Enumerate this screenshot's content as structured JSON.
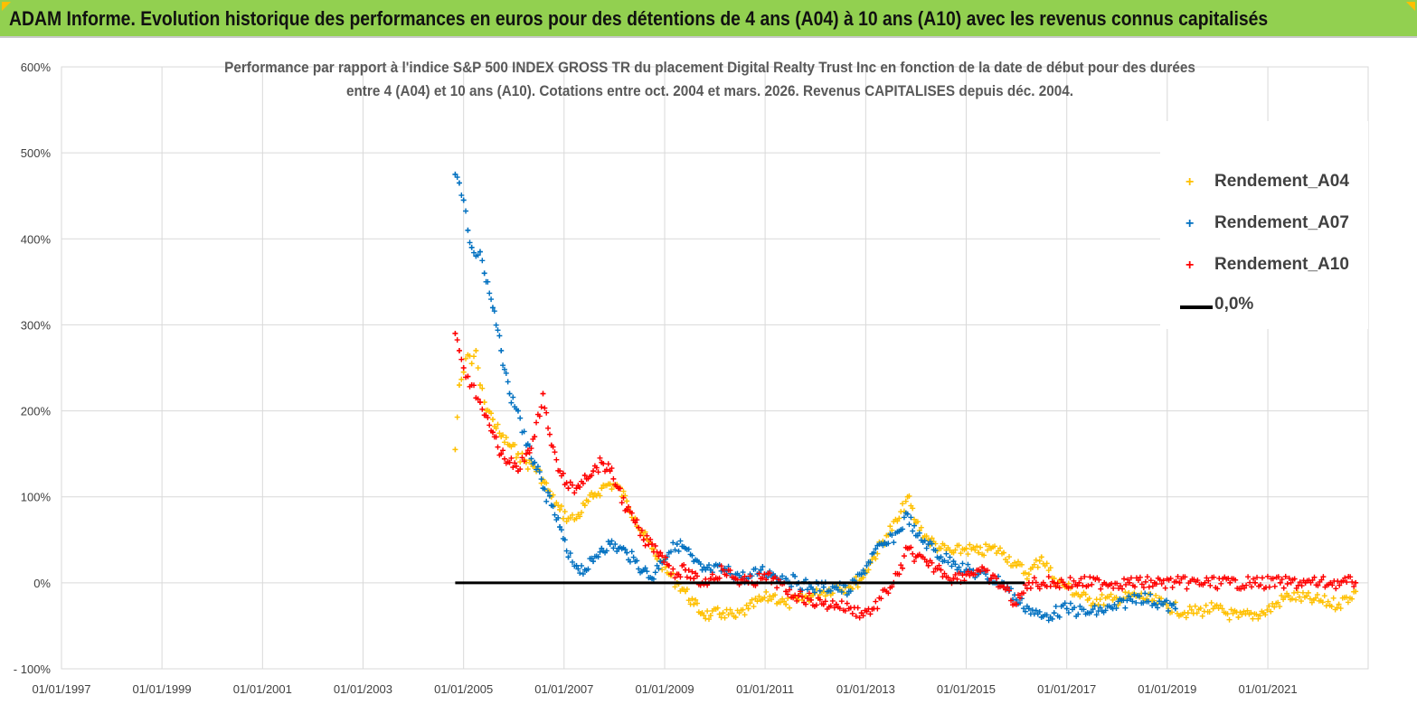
{
  "banner": {
    "title": "ADAM Informe. Evolution historique des performances en euros pour des détentions de 4 ans (A04) à 10 ans (A10) avec les revenus connus capitalisés",
    "color": "#92d050"
  },
  "chart_data": {
    "type": "scatter",
    "title_line1": "Performance par rapport à l'indice S&P 500 INDEX GROSS TR  du placement Digital Realty Trust Inc en fonction de la date de début pour des durées",
    "title_line2": "entre 4 (A04) et 10 ans (A10).  Cotations entre oct. 2004 et mars. 2026. Revenus CAPITALISES depuis déc. 2004.",
    "xlabel": "",
    "ylabel": "",
    "x_range": [
      "1997-01-01",
      "2022-12-31"
    ],
    "ylim": [
      -100,
      600
    ],
    "y_ticks": [
      -100,
      0,
      100,
      200,
      300,
      400,
      500,
      600
    ],
    "y_tick_labels": [
      "- 100%",
      "0%",
      "100%",
      "200%",
      "300%",
      "400%",
      "500%",
      "600%"
    ],
    "x_tick_labels": [
      "01/01/1997",
      "01/01/1999",
      "01/01/2001",
      "01/01/2003",
      "01/01/2005",
      "01/01/2007",
      "01/01/2009",
      "01/01/2011",
      "01/01/2013",
      "01/01/2015",
      "01/01/2017",
      "01/01/2019",
      "01/01/2021"
    ],
    "grid": true,
    "legend_position": "top-right",
    "series": [
      {
        "name": "Rendement_A04",
        "color": "#ffc000",
        "marker": "+",
        "points": [
          [
            "2004-11-01",
            155
          ],
          [
            "2004-12-01",
            230
          ],
          [
            "2005-01-01",
            245
          ],
          [
            "2005-02-01",
            265
          ],
          [
            "2005-03-01",
            255
          ],
          [
            "2005-04-01",
            270
          ],
          [
            "2005-05-01",
            230
          ],
          [
            "2005-06-01",
            210
          ],
          [
            "2005-08-01",
            190
          ],
          [
            "2005-10-01",
            170
          ],
          [
            "2005-12-01",
            160
          ],
          [
            "2006-02-01",
            150
          ],
          [
            "2006-04-01",
            140
          ],
          [
            "2006-06-01",
            135
          ],
          [
            "2006-08-01",
            120
          ],
          [
            "2006-10-01",
            100
          ],
          [
            "2006-12-01",
            85
          ],
          [
            "2007-02-01",
            75
          ],
          [
            "2007-04-01",
            75
          ],
          [
            "2007-06-01",
            90
          ],
          [
            "2007-08-01",
            100
          ],
          [
            "2007-10-01",
            110
          ],
          [
            "2007-12-01",
            115
          ],
          [
            "2008-02-01",
            110
          ],
          [
            "2008-04-01",
            95
          ],
          [
            "2008-06-01",
            75
          ],
          [
            "2008-08-01",
            55
          ],
          [
            "2008-10-01",
            40
          ],
          [
            "2008-12-01",
            25
          ],
          [
            "2009-02-01",
            10
          ],
          [
            "2009-04-01",
            0
          ],
          [
            "2009-06-01",
            -10
          ],
          [
            "2009-08-01",
            -25
          ],
          [
            "2009-10-01",
            -35
          ],
          [
            "2009-12-01",
            -38
          ],
          [
            "2010-03-01",
            -35
          ],
          [
            "2010-06-01",
            -40
          ],
          [
            "2010-09-01",
            -30
          ],
          [
            "2010-12-01",
            -20
          ],
          [
            "2011-03-01",
            -15
          ],
          [
            "2011-06-01",
            -25
          ],
          [
            "2011-09-01",
            -20
          ],
          [
            "2011-12-01",
            -15
          ],
          [
            "2012-03-01",
            -10
          ],
          [
            "2012-06-01",
            -5
          ],
          [
            "2012-09-01",
            -5
          ],
          [
            "2012-12-01",
            5
          ],
          [
            "2013-03-01",
            30
          ],
          [
            "2013-06-01",
            55
          ],
          [
            "2013-09-01",
            75
          ],
          [
            "2013-11-01",
            100
          ],
          [
            "2014-01-01",
            70
          ],
          [
            "2014-04-01",
            50
          ],
          [
            "2014-07-01",
            40
          ],
          [
            "2014-10-01",
            35
          ],
          [
            "2015-01-01",
            40
          ],
          [
            "2015-04-01",
            35
          ],
          [
            "2015-07-01",
            40
          ],
          [
            "2015-10-01",
            35
          ],
          [
            "2016-01-01",
            20
          ],
          [
            "2016-04-01",
            10
          ],
          [
            "2016-07-01",
            30
          ],
          [
            "2016-10-01",
            5
          ],
          [
            "2017-01-01",
            -5
          ],
          [
            "2017-06-01",
            -20
          ],
          [
            "2017-12-01",
            -20
          ],
          [
            "2018-06-01",
            -15
          ],
          [
            "2018-12-01",
            -25
          ],
          [
            "2019-06-01",
            -35
          ],
          [
            "2019-12-01",
            -30
          ],
          [
            "2020-06-01",
            -40
          ],
          [
            "2020-12-01",
            -35
          ],
          [
            "2021-06-01",
            -15
          ],
          [
            "2021-12-01",
            -20
          ],
          [
            "2022-06-01",
            -25
          ],
          [
            "2022-10-01",
            -10
          ]
        ]
      },
      {
        "name": "Rendement_A07",
        "color": "#0070c0",
        "marker": "+",
        "points": [
          [
            "2004-11-01",
            475
          ],
          [
            "2004-12-01",
            465
          ],
          [
            "2005-01-01",
            445
          ],
          [
            "2005-02-01",
            410
          ],
          [
            "2005-03-01",
            390
          ],
          [
            "2005-04-01",
            380
          ],
          [
            "2005-05-01",
            385
          ],
          [
            "2005-06-01",
            360
          ],
          [
            "2005-08-01",
            320
          ],
          [
            "2005-10-01",
            270
          ],
          [
            "2005-12-01",
            220
          ],
          [
            "2006-02-01",
            200
          ],
          [
            "2006-04-01",
            160
          ],
          [
            "2006-06-01",
            140
          ],
          [
            "2006-08-01",
            110
          ],
          [
            "2006-10-01",
            90
          ],
          [
            "2006-12-01",
            65
          ],
          [
            "2007-02-01",
            30
          ],
          [
            "2007-04-01",
            20
          ],
          [
            "2007-06-01",
            15
          ],
          [
            "2007-08-01",
            25
          ],
          [
            "2007-10-01",
            40
          ],
          [
            "2007-12-01",
            45
          ],
          [
            "2008-02-01",
            40
          ],
          [
            "2008-04-01",
            35
          ],
          [
            "2008-06-01",
            25
          ],
          [
            "2008-08-01",
            15
          ],
          [
            "2008-10-01",
            5
          ],
          [
            "2008-12-01",
            25
          ],
          [
            "2009-02-01",
            35
          ],
          [
            "2009-04-01",
            45
          ],
          [
            "2009-06-01",
            40
          ],
          [
            "2009-08-01",
            25
          ],
          [
            "2009-10-01",
            15
          ],
          [
            "2009-12-01",
            15
          ],
          [
            "2010-03-01",
            15
          ],
          [
            "2010-06-01",
            10
          ],
          [
            "2010-09-01",
            5
          ],
          [
            "2010-12-01",
            15
          ],
          [
            "2011-03-01",
            10
          ],
          [
            "2011-06-01",
            5
          ],
          [
            "2011-09-01",
            0
          ],
          [
            "2011-12-01",
            -5
          ],
          [
            "2012-03-01",
            -5
          ],
          [
            "2012-06-01",
            -5
          ],
          [
            "2012-09-01",
            -10
          ],
          [
            "2012-12-01",
            10
          ],
          [
            "2013-03-01",
            35
          ],
          [
            "2013-06-01",
            45
          ],
          [
            "2013-09-01",
            60
          ],
          [
            "2013-11-01",
            80
          ],
          [
            "2014-01-01",
            55
          ],
          [
            "2014-04-01",
            45
          ],
          [
            "2014-07-01",
            30
          ],
          [
            "2014-10-01",
            25
          ],
          [
            "2015-01-01",
            15
          ],
          [
            "2015-04-01",
            10
          ],
          [
            "2015-07-01",
            5
          ],
          [
            "2015-10-01",
            0
          ],
          [
            "2016-01-01",
            -20
          ],
          [
            "2016-04-01",
            -30
          ],
          [
            "2016-07-01",
            -40
          ],
          [
            "2016-10-01",
            -35
          ],
          [
            "2017-01-01",
            -30
          ],
          [
            "2017-06-01",
            -35
          ],
          [
            "2017-12-01",
            -30
          ],
          [
            "2018-06-01",
            -15
          ],
          [
            "2018-12-01",
            -25
          ],
          [
            "2019-03-01",
            -30
          ]
        ]
      },
      {
        "name": "Rendement_A10",
        "color": "#ff0000",
        "marker": "+",
        "points": [
          [
            "2004-11-01",
            290
          ],
          [
            "2004-12-01",
            270
          ],
          [
            "2005-01-01",
            250
          ],
          [
            "2005-02-01",
            240
          ],
          [
            "2005-03-01",
            230
          ],
          [
            "2005-04-01",
            215
          ],
          [
            "2005-05-01",
            210
          ],
          [
            "2005-06-01",
            195
          ],
          [
            "2005-08-01",
            175
          ],
          [
            "2005-10-01",
            150
          ],
          [
            "2005-12-01",
            140
          ],
          [
            "2006-02-01",
            130
          ],
          [
            "2006-04-01",
            150
          ],
          [
            "2006-06-01",
            170
          ],
          [
            "2006-08-01",
            220
          ],
          [
            "2006-10-01",
            160
          ],
          [
            "2006-12-01",
            130
          ],
          [
            "2007-02-01",
            110
          ],
          [
            "2007-04-01",
            110
          ],
          [
            "2007-06-01",
            125
          ],
          [
            "2007-08-01",
            130
          ],
          [
            "2007-10-01",
            140
          ],
          [
            "2007-12-01",
            130
          ],
          [
            "2008-02-01",
            110
          ],
          [
            "2008-04-01",
            85
          ],
          [
            "2008-06-01",
            70
          ],
          [
            "2008-08-01",
            50
          ],
          [
            "2008-10-01",
            45
          ],
          [
            "2008-12-01",
            35
          ],
          [
            "2009-02-01",
            20
          ],
          [
            "2009-04-01",
            10
          ],
          [
            "2009-06-01",
            15
          ],
          [
            "2009-08-01",
            5
          ],
          [
            "2009-10-01",
            0
          ],
          [
            "2009-12-01",
            5
          ],
          [
            "2010-03-01",
            15
          ],
          [
            "2010-06-01",
            5
          ],
          [
            "2010-09-01",
            0
          ],
          [
            "2010-12-01",
            5
          ],
          [
            "2011-03-01",
            5
          ],
          [
            "2011-06-01",
            -10
          ],
          [
            "2011-09-01",
            -15
          ],
          [
            "2011-12-01",
            -20
          ],
          [
            "2012-03-01",
            -25
          ],
          [
            "2012-06-01",
            -25
          ],
          [
            "2012-09-01",
            -30
          ],
          [
            "2012-12-01",
            -35
          ],
          [
            "2013-03-01",
            -30
          ],
          [
            "2013-06-01",
            -10
          ],
          [
            "2013-09-01",
            10
          ],
          [
            "2013-11-01",
            40
          ],
          [
            "2014-01-01",
            30
          ],
          [
            "2014-04-01",
            20
          ],
          [
            "2014-07-01",
            15
          ],
          [
            "2014-10-01",
            5
          ],
          [
            "2015-01-01",
            10
          ],
          [
            "2015-04-01",
            15
          ],
          [
            "2015-07-01",
            5
          ],
          [
            "2015-10-01",
            -5
          ],
          [
            "2016-01-01",
            -25
          ],
          [
            "2016-04-01",
            0
          ],
          [
            "2016-10-01",
            0
          ],
          [
            "2017-04-01",
            0
          ],
          [
            "2017-10-01",
            0
          ],
          [
            "2018-04-01",
            0
          ],
          [
            "2018-10-01",
            0
          ],
          [
            "2019-04-01",
            0
          ],
          [
            "2019-10-01",
            0
          ],
          [
            "2020-04-01",
            0
          ],
          [
            "2020-10-01",
            0
          ],
          [
            "2021-04-01",
            0
          ],
          [
            "2021-10-01",
            0
          ],
          [
            "2022-04-01",
            0
          ],
          [
            "2022-10-01",
            0
          ]
        ]
      },
      {
        "name": "0,0%",
        "color": "#000000",
        "marker": "line",
        "points": [
          [
            "2004-11-01",
            0
          ],
          [
            "2016-03-01",
            0
          ]
        ]
      }
    ]
  }
}
